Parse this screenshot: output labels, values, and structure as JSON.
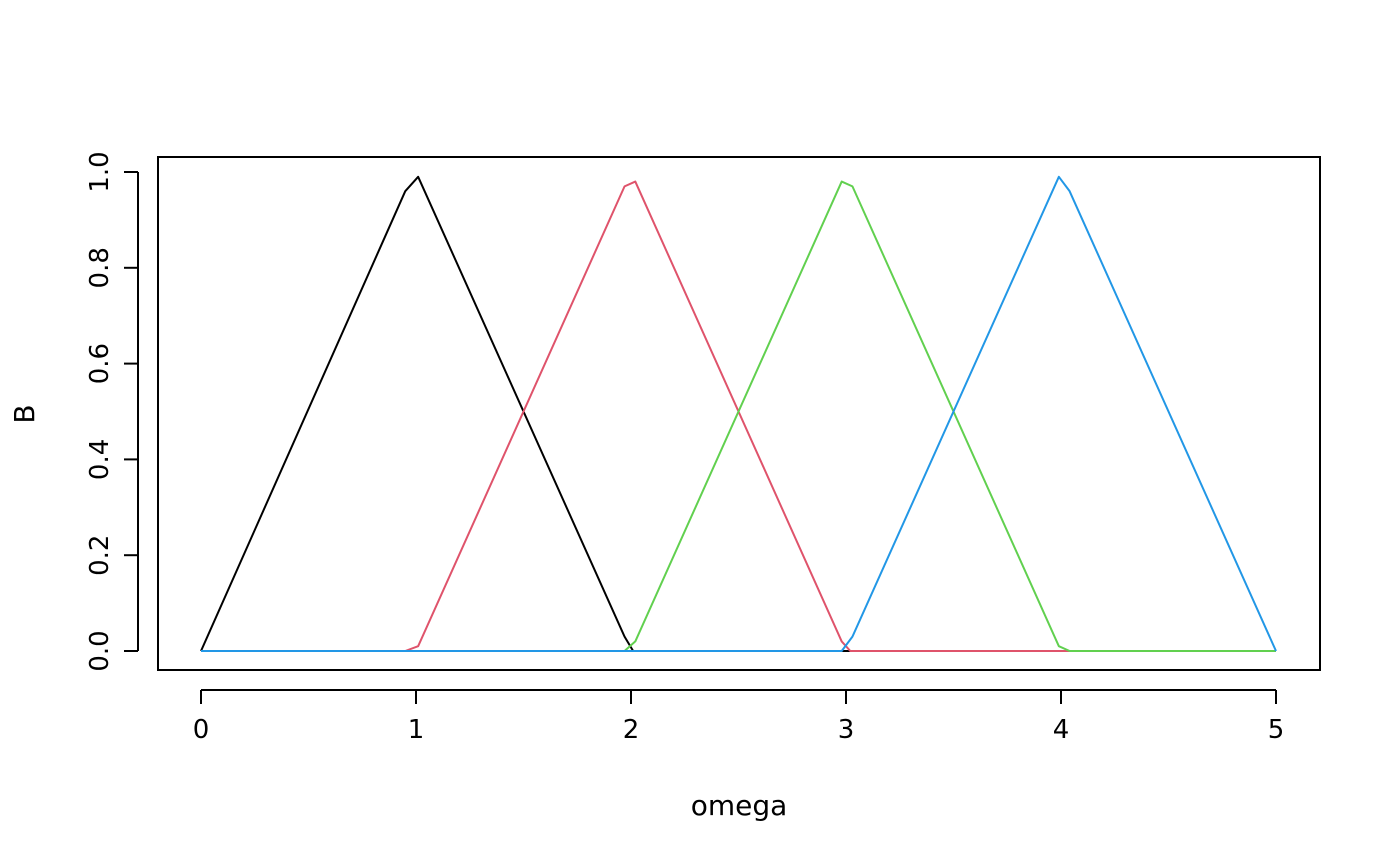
{
  "chart_data": {
    "type": "line",
    "title": "",
    "xlabel": "omega",
    "ylabel": "B",
    "xlim": [
      0,
      5
    ],
    "ylim": [
      0,
      1
    ],
    "x_ticks": [
      "0",
      "1",
      "2",
      "3",
      "4",
      "5"
    ],
    "y_ticks": [
      "0.0",
      "0.2",
      "0.4",
      "0.6",
      "0.8",
      "1.0"
    ],
    "grid": false,
    "legend": "none",
    "series": [
      {
        "color": "#000000",
        "points": [
          [
            0,
            0
          ],
          [
            0.95,
            0.96
          ],
          [
            1.01,
            0.99
          ],
          [
            1.97,
            0.03
          ],
          [
            2.01,
            0
          ],
          [
            5,
            0
          ]
        ]
      },
      {
        "color": "#DF536B",
        "points": [
          [
            0,
            0
          ],
          [
            0.95,
            0
          ],
          [
            1.01,
            0.01
          ],
          [
            1.97,
            0.97
          ],
          [
            2.02,
            0.98
          ],
          [
            2.98,
            0.02
          ],
          [
            3.02,
            0
          ],
          [
            5,
            0
          ]
        ]
      },
      {
        "color": "#61D04F",
        "points": [
          [
            0,
            0
          ],
          [
            1.97,
            0
          ],
          [
            2.02,
            0.02
          ],
          [
            2.98,
            0.98
          ],
          [
            3.03,
            0.97
          ],
          [
            3.99,
            0.01
          ],
          [
            4.04,
            0
          ],
          [
            5,
            0
          ]
        ]
      },
      {
        "color": "#2297E6",
        "points": [
          [
            0,
            0
          ],
          [
            2.98,
            0
          ],
          [
            3.03,
            0.03
          ],
          [
            3.99,
            0.99
          ],
          [
            4.04,
            0.96
          ],
          [
            5,
            0
          ]
        ]
      }
    ]
  }
}
